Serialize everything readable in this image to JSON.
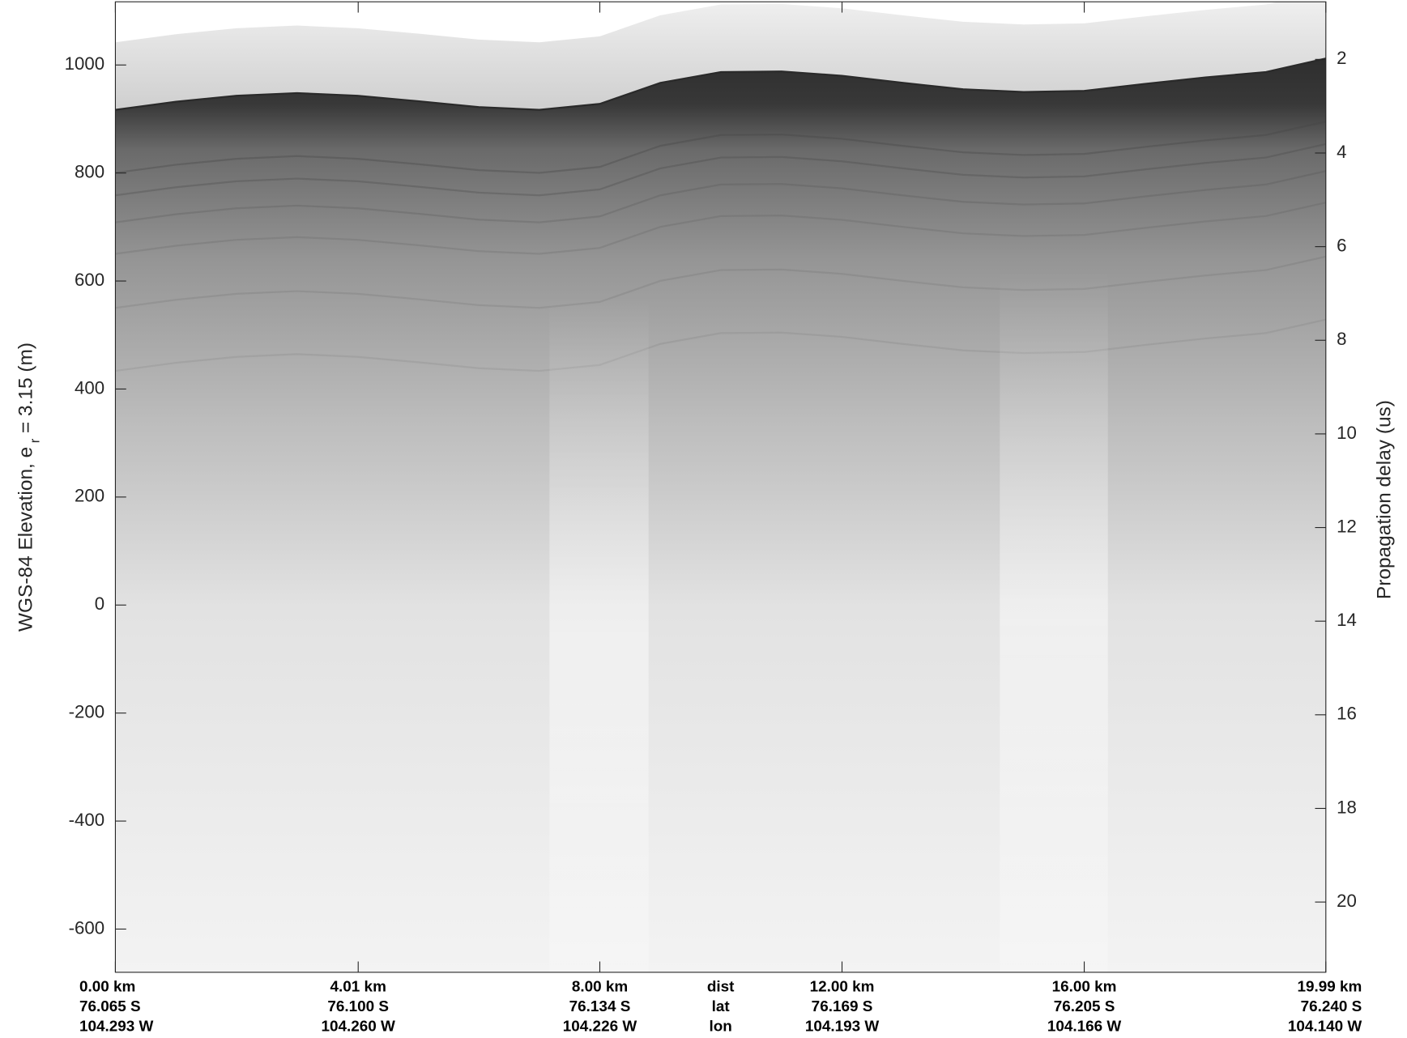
{
  "chart_data": {
    "type": "echogram",
    "ylabel": [
      "WGS-84 Elevation, e",
      "r",
      "= 3.15 (m)"
    ],
    "y2label": "Propagation delay (us)",
    "xlim": [
      0,
      19.99
    ],
    "xticks": [
      {
        "value": 0,
        "label": "0.00 km"
      },
      {
        "value": 4.01,
        "label": "4.01 km"
      },
      {
        "value": 8.0,
        "label": "8.00 km"
      },
      {
        "value": 12.0,
        "label": "12.00 km"
      },
      {
        "value": 16.0,
        "label": "16.00 km"
      },
      {
        "value": 19.99,
        "label": "19.99 km"
      }
    ],
    "lat_labels": [
      "76.065 S",
      "76.100 S",
      "76.134 S",
      "76.169 S",
      "76.205 S",
      "76.240 S"
    ],
    "lon_labels": [
      "104.293 W",
      "104.260 W",
      "104.226 W",
      "104.193 W",
      "104.166 W",
      "104.140 W"
    ],
    "row_labels": [
      "dist",
      "lat",
      "lon"
    ],
    "ylim": [
      -680,
      1117
    ],
    "yticks": [
      -600,
      -400,
      -200,
      0,
      200,
      400,
      600,
      800,
      1000
    ],
    "y2lim": [
      21.5,
      0.77
    ],
    "y2ticks": [
      2,
      4,
      6,
      8,
      10,
      12,
      14,
      16,
      18,
      20
    ],
    "x": [
      0,
      1,
      2,
      3,
      4,
      5,
      6,
      7,
      8,
      9,
      10,
      11,
      12,
      13,
      14,
      15,
      16,
      17,
      18,
      19,
      19.99
    ],
    "values": [
      917,
      932,
      943,
      948,
      943,
      933,
      922,
      917,
      928,
      967,
      987,
      988,
      980,
      967,
      955,
      950,
      952,
      965,
      977,
      987,
      1012
    ]
  }
}
